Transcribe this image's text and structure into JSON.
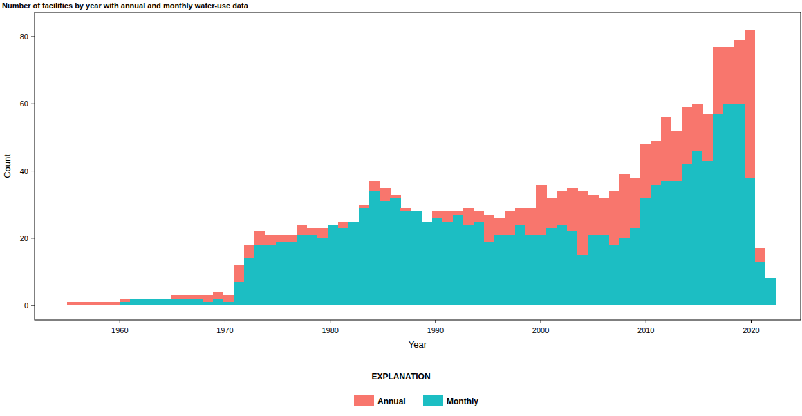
{
  "chart_data": {
    "type": "histogram",
    "title": "Number of facilities by year with annual and monthly water-use data",
    "x_label": "Year",
    "y_label": "Count",
    "legend_title": "EXPLANATION",
    "bins": [
      1955.0,
      1955.99,
      1956.98,
      1957.97,
      1958.96,
      1959.95,
      1960.94,
      1961.93,
      1962.92,
      1963.91,
      1964.9,
      1965.89,
      1966.88,
      1967.87,
      1968.86,
      1969.85,
      1970.84,
      1971.83,
      1972.82,
      1973.81,
      1974.8,
      1975.79,
      1976.78,
      1977.77,
      1978.76,
      1979.75,
      1980.74,
      1981.73,
      1982.72,
      1983.71,
      1984.7,
      1985.69,
      1986.68,
      1987.67,
      1988.66,
      1989.65,
      1990.64,
      1991.63,
      1992.62,
      1993.61,
      1994.6,
      1995.59,
      1996.58,
      1997.57,
      1998.56,
      1999.55,
      2000.54,
      2001.53,
      2002.52,
      2003.51,
      2004.5,
      2005.49,
      2006.48,
      2007.47,
      2008.46,
      2009.45,
      2010.44,
      2011.43,
      2012.42,
      2013.41,
      2014.4,
      2015.39,
      2016.38,
      2017.37,
      2018.36,
      2019.35,
      2020.34,
      2021.33,
      2022.32
    ],
    "series": [
      {
        "name": "Annual",
        "color": "#f8766d",
        "values": [
          1,
          1,
          1,
          1,
          1,
          1,
          0,
          0,
          0,
          0,
          1,
          1,
          1,
          2,
          2,
          2,
          5,
          4,
          4,
          3,
          2,
          2,
          3,
          2,
          3,
          0,
          2,
          0,
          1,
          3,
          4,
          1,
          1,
          0,
          0,
          2,
          3,
          1,
          5,
          3,
          8,
          5,
          7,
          5,
          8,
          15,
          9,
          10,
          13,
          19,
          12,
          11,
          16,
          19,
          15,
          16,
          13,
          19,
          15,
          17,
          14,
          14,
          20,
          17,
          19,
          44,
          4,
          0
        ]
      },
      {
        "name": "Monthly",
        "color": "#1cbec3",
        "values": [
          0,
          0,
          0,
          0,
          0,
          1,
          2,
          2,
          2,
          2,
          2,
          2,
          2,
          1,
          2,
          1,
          7,
          14,
          18,
          18,
          19,
          19,
          21,
          21,
          20,
          24,
          23,
          25,
          29,
          34,
          31,
          32,
          28,
          28,
          25,
          26,
          25,
          27,
          24,
          25,
          19,
          21,
          21,
          24,
          21,
          21,
          23,
          24,
          22,
          15,
          21,
          21,
          18,
          20,
          23,
          32,
          36,
          37,
          37,
          42,
          46,
          43,
          57,
          60,
          60,
          38,
          13,
          8
        ]
      }
    ],
    "stacked": true,
    "grid": false,
    "legend": "bottom",
    "xlim": [
      1951.9,
      2024.7
    ],
    "xticks": [
      1960,
      1970,
      1980,
      1990,
      2000,
      2010,
      2020
    ],
    "ylim": [
      -4.3,
      87.2
    ],
    "yticks": [
      0,
      20,
      40,
      60,
      80
    ]
  }
}
